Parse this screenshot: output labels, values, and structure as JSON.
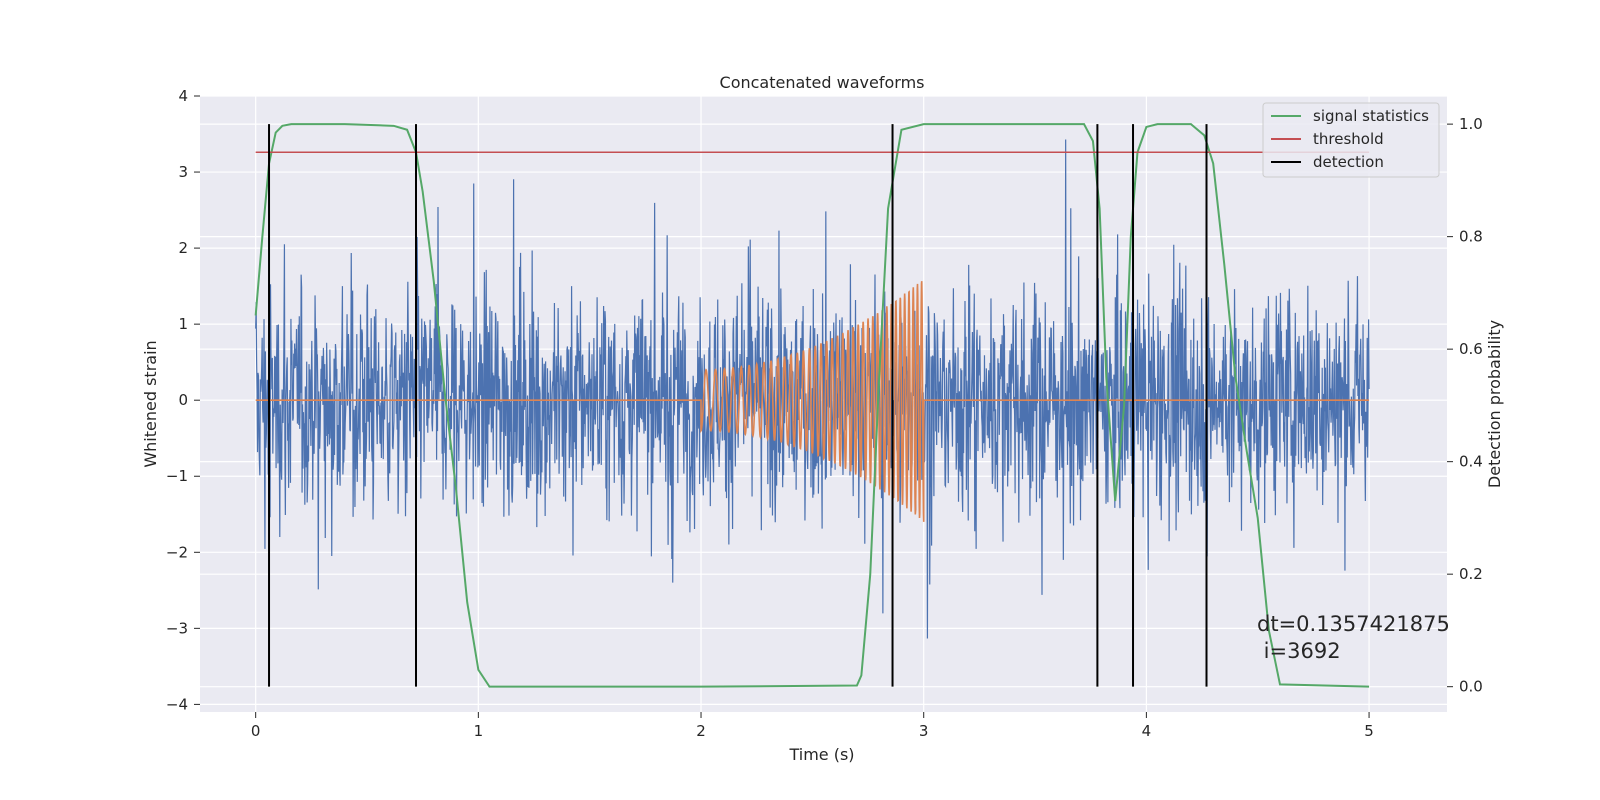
{
  "chart_data": {
    "type": "line",
    "title": "Concatenated waveforms",
    "xlabel": "Time (s)",
    "ylabel": "Whitened strain",
    "y2label": "Detection probability",
    "xlim": [
      -0.25,
      5.35
    ],
    "ylim": [
      -4.1,
      4.0
    ],
    "y2lim": [
      -0.045,
      1.05
    ],
    "x_ticks": [
      0,
      1,
      2,
      3,
      4,
      5
    ],
    "y_ticks": [
      -4,
      -3,
      -2,
      -1,
      0,
      1,
      2,
      3,
      4
    ],
    "y2_ticks": [
      0.0,
      0.2,
      0.4,
      0.6,
      0.8,
      1.0
    ],
    "x_tick_labels": [
      "0",
      "1",
      "2",
      "3",
      "4",
      "5"
    ],
    "y_tick_labels": [
      "−4",
      "−3",
      "−2",
      "−1",
      "0",
      "1",
      "2",
      "3",
      "4"
    ],
    "y2_tick_labels": [
      "0.0",
      "0.2",
      "0.4",
      "0.6",
      "0.8",
      "1.0"
    ],
    "grid": true,
    "background": "#eaeaf2",
    "series": [
      {
        "name": "",
        "kind": "noise",
        "color": "#4c72b0",
        "axis": "left",
        "x_range": [
          0,
          5
        ],
        "typical_amplitude": 1.0,
        "max_abs": 3.7
      },
      {
        "name": "",
        "kind": "chirp",
        "color": "#dd8452",
        "axis": "left",
        "segments": [
          {
            "x": [
              0,
              2
            ],
            "y": 0
          },
          {
            "x": [
              2,
              3
            ],
            "amplitude_start": 0.4,
            "amplitude_end": 1.6
          },
          {
            "x": [
              3,
              5
            ],
            "y": 0
          }
        ]
      },
      {
        "name": "signal statistics",
        "kind": "line",
        "color": "#55a868",
        "axis": "right",
        "x": [
          0.0,
          0.03,
          0.06,
          0.09,
          0.12,
          0.16,
          0.2,
          0.4,
          0.62,
          0.68,
          0.72,
          0.75,
          0.8,
          0.85,
          0.9,
          0.95,
          1.0,
          1.05,
          2.0,
          2.7,
          2.72,
          2.76,
          2.8,
          2.84,
          2.9,
          3.0,
          3.5,
          3.72,
          3.76,
          3.79,
          3.82,
          3.86,
          3.9,
          3.93,
          3.96,
          4.0,
          4.05,
          4.2,
          4.26,
          4.3,
          4.35,
          4.4,
          4.45,
          4.5,
          4.55,
          4.6,
          5.0
        ],
        "y": [
          0.66,
          0.8,
          0.93,
          0.985,
          0.997,
          1.0,
          1.0,
          1.0,
          0.997,
          0.99,
          0.95,
          0.88,
          0.72,
          0.52,
          0.35,
          0.15,
          0.03,
          0.0,
          0.0,
          0.002,
          0.02,
          0.2,
          0.55,
          0.85,
          0.99,
          1.0,
          1.0,
          1.0,
          0.97,
          0.85,
          0.55,
          0.33,
          0.5,
          0.8,
          0.95,
          0.995,
          1.0,
          1.0,
          0.98,
          0.93,
          0.75,
          0.55,
          0.42,
          0.3,
          0.1,
          0.004,
          0.0
        ]
      },
      {
        "name": "threshold",
        "kind": "hline",
        "color": "#c44e52",
        "axis": "right",
        "x": [
          0,
          5
        ],
        "y": 0.95
      },
      {
        "name": "detection",
        "kind": "vlines",
        "color": "#000000",
        "axis": "right",
        "x": [
          0.06,
          0.72,
          2.86,
          3.78,
          3.94,
          4.27
        ],
        "y_range": [
          0.0,
          1.0
        ]
      }
    ],
    "legend_position": "top-right",
    "annotation": {
      "line1": "dt=0.1357421875",
      "line2": " i=3692"
    }
  }
}
